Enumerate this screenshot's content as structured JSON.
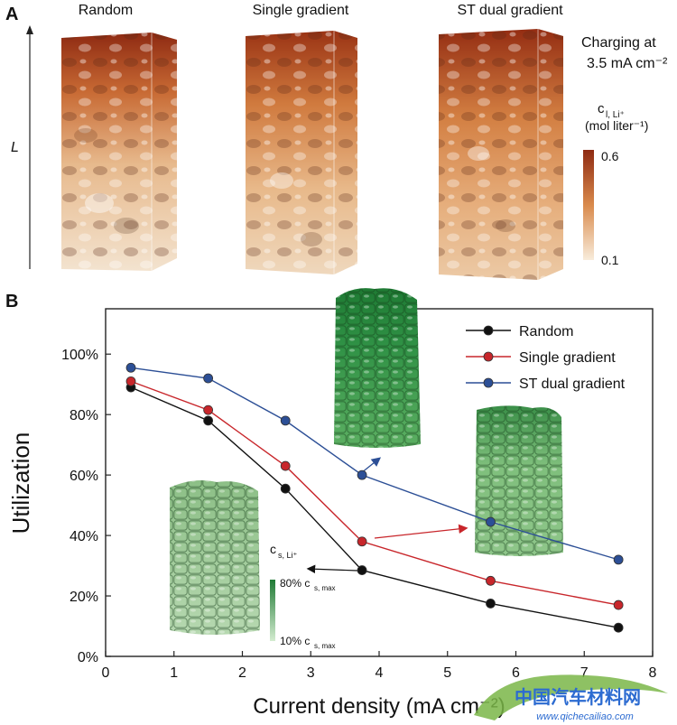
{
  "panel_a": {
    "label": "A",
    "titles": [
      "Random",
      "Single gradient",
      "ST dual gradient"
    ],
    "axis_label": "L",
    "charging_line1": "Charging at",
    "charging_line2": "3.5 mA cm⁻²",
    "colorbar_title_line1": "c",
    "colorbar_title_sub": "l, Li⁺",
    "colorbar_title_line2": "(mol liter⁻¹)",
    "colorbar_max": "0.6",
    "colorbar_min": "0.1",
    "colors": {
      "dark": "#8e2a12",
      "mid": "#d98a4c",
      "light": "#f6e7d2"
    }
  },
  "panel_b": {
    "label": "B",
    "inset_colorbar_title": "c",
    "inset_colorbar_sub": "s, Li⁺",
    "inset_colorbar_max": "80% c",
    "inset_colorbar_max_sub": "s, max",
    "inset_colorbar_min": "10% c",
    "inset_colorbar_min_sub": "s, max",
    "colors": {
      "green_dark": "#1f7a35",
      "green_light": "#b9dcb6"
    }
  },
  "chart_data": {
    "type": "line",
    "xlabel": "Current density (mA cm⁻²)",
    "ylabel": "Utilization",
    "xlim": [
      0,
      8
    ],
    "ylim": [
      0,
      1.15
    ],
    "xticks": [
      "0",
      "1",
      "2",
      "3",
      "4",
      "5",
      "6",
      "7",
      "8"
    ],
    "yticks": [
      "0%",
      "20%",
      "40%",
      "60%",
      "80%",
      "100%"
    ],
    "x": [
      0.37,
      1.5,
      2.63,
      3.75,
      5.63,
      7.5
    ],
    "series": [
      {
        "name": "Random",
        "color": "#111111",
        "values": [
          0.89,
          0.78,
          0.555,
          0.285,
          0.175,
          0.095
        ]
      },
      {
        "name": "Single gradient",
        "color": "#c8262b",
        "values": [
          0.91,
          0.815,
          0.63,
          0.38,
          0.25,
          0.17
        ]
      },
      {
        "name": "ST dual gradient",
        "color": "#2c4f96",
        "values": [
          0.955,
          0.92,
          0.78,
          0.6,
          0.445,
          0.32
        ]
      }
    ],
    "legend": "top-right",
    "grid": false
  },
  "watermark": {
    "brand": "中国汽车材料网",
    "url": "www.qichecailiao.com"
  }
}
